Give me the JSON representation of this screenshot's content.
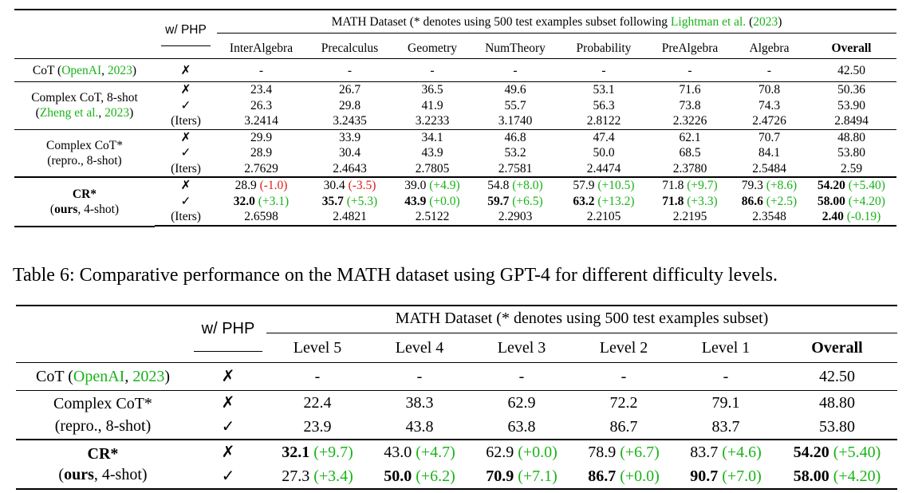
{
  "table1": {
    "php_header": "w/ PHP",
    "group_header_prefix": "MATH Dataset (* denotes using 500 test examples subset following ",
    "group_header_cite_author": "Lightman et al.",
    "group_header_cite_year": "2023",
    "columns": [
      "InterAlgebra",
      "Precalculus",
      "Geometry",
      "NumTheory",
      "Probability",
      "PreAlgebra",
      "Algebra",
      "Overall"
    ],
    "cot": {
      "label_prefix": "CoT (",
      "label_author": "OpenAI",
      "label_year": "2023",
      "php": "✗",
      "values": [
        "-",
        "-",
        "-",
        "-",
        "-",
        "-",
        "-",
        "42.50"
      ]
    },
    "complex_cot": {
      "label_line1": "Complex CoT, 8-shot",
      "label_author": "Zheng et al.",
      "label_year": "2023",
      "php": [
        "✗",
        "✓",
        "(Iters)"
      ],
      "rows": [
        [
          "23.4",
          "26.7",
          "36.5",
          "49.6",
          "53.1",
          "71.6",
          "70.8",
          "50.36"
        ],
        [
          "26.3",
          "29.8",
          "41.9",
          "55.7",
          "56.3",
          "73.8",
          "74.3",
          "53.90"
        ],
        [
          "3.2414",
          "3.2435",
          "3.2233",
          "3.1740",
          "2.8122",
          "2.3226",
          "2.4726",
          "2.8494"
        ]
      ]
    },
    "complex_cot_repro": {
      "label_line1": "Complex CoT*",
      "label_line2": "(repro., 8-shot)",
      "php": [
        "✗",
        "✓",
        "(Iters)"
      ],
      "rows": [
        [
          "29.9",
          "33.9",
          "34.1",
          "46.8",
          "47.4",
          "62.1",
          "70.7",
          "48.80"
        ],
        [
          "28.9",
          "30.4",
          "43.9",
          "53.2",
          "50.0",
          "68.5",
          "84.1",
          "53.80"
        ],
        [
          "2.7629",
          "2.4643",
          "2.7805",
          "2.7581",
          "2.4474",
          "2.3780",
          "2.5484",
          "2.59"
        ]
      ]
    },
    "cr": {
      "label_line1": "CR*",
      "label_line2_bold": "ours",
      "label_line2_rest": ", 4-shot)",
      "php": [
        "✗",
        "✓",
        "(Iters)"
      ],
      "row1": [
        {
          "v": "28.9",
          "d": "(-1.0)",
          "c": "r",
          "bold": false
        },
        {
          "v": "30.4",
          "d": "(-3.5)",
          "c": "r",
          "bold": false
        },
        {
          "v": "39.0",
          "d": "(+4.9)",
          "c": "g",
          "bold": false
        },
        {
          "v": "54.8",
          "d": "(+8.0)",
          "c": "g",
          "bold": false
        },
        {
          "v": "57.9",
          "d": "(+10.5)",
          "c": "g",
          "bold": false
        },
        {
          "v": "71.8",
          "d": "(+9.7)",
          "c": "g",
          "bold": false
        },
        {
          "v": "79.3",
          "d": "(+8.6)",
          "c": "g",
          "bold": false
        },
        {
          "v": "54.20",
          "d": "(+5.40)",
          "c": "g",
          "bold": true
        }
      ],
      "row2": [
        {
          "v": "32.0",
          "d": "(+3.1)",
          "c": "g",
          "bold": true
        },
        {
          "v": "35.7",
          "d": "(+5.3)",
          "c": "g",
          "bold": true
        },
        {
          "v": "43.9",
          "d": "(+0.0)",
          "c": "g",
          "bold": true
        },
        {
          "v": "59.7",
          "d": "(+6.5)",
          "c": "g",
          "bold": true
        },
        {
          "v": "63.2",
          "d": "(+13.2)",
          "c": "g",
          "bold": true
        },
        {
          "v": "71.8",
          "d": "(+3.3)",
          "c": "g",
          "bold": true
        },
        {
          "v": "86.6",
          "d": "(+2.5)",
          "c": "g",
          "bold": true
        },
        {
          "v": "58.00",
          "d": "(+4.20)",
          "c": "g",
          "bold": true
        }
      ],
      "row3": [
        {
          "v": "2.6598",
          "d": "",
          "c": "",
          "bold": false
        },
        {
          "v": "2.4821",
          "d": "",
          "c": "",
          "bold": false
        },
        {
          "v": "2.5122",
          "d": "",
          "c": "",
          "bold": false
        },
        {
          "v": "2.2903",
          "d": "",
          "c": "",
          "bold": false
        },
        {
          "v": "2.2105",
          "d": "",
          "c": "",
          "bold": false
        },
        {
          "v": "2.2195",
          "d": "",
          "c": "",
          "bold": false
        },
        {
          "v": "2.3548",
          "d": "",
          "c": "",
          "bold": false
        },
        {
          "v": "2.40",
          "d": "(-0.19)",
          "c": "g",
          "bold": true
        }
      ]
    }
  },
  "caption": "Table 6: Comparative performance on the MATH dataset using GPT-4 for different difficulty levels.",
  "table2": {
    "php_header": "w/ PHP",
    "group_header": "MATH Dataset (* denotes using 500 test examples subset)",
    "columns": [
      "Level 5",
      "Level 4",
      "Level 3",
      "Level 2",
      "Level 1",
      "Overall"
    ],
    "cot": {
      "label_prefix": "CoT (",
      "label_author": "OpenAI",
      "label_year": "2023",
      "php": "✗",
      "values": [
        "-",
        "-",
        "-",
        "-",
        "-",
        "42.50"
      ]
    },
    "complex_cot_repro": {
      "label_line1": "Complex CoT*",
      "label_line2": "(repro., 8-shot)",
      "php": [
        "✗",
        "✓"
      ],
      "rows": [
        [
          "22.4",
          "38.3",
          "62.9",
          "72.2",
          "79.1",
          "48.80"
        ],
        [
          "23.9",
          "43.8",
          "63.8",
          "86.7",
          "83.7",
          "53.80"
        ]
      ]
    },
    "cr": {
      "label_line1": "CR*",
      "label_line2_bold": "ours",
      "label_line2_rest": ", 4-shot)",
      "php": [
        "✗",
        "✓"
      ],
      "row1": [
        {
          "v": "32.1",
          "d": "(+9.7)",
          "c": "g",
          "bold": true
        },
        {
          "v": "43.0",
          "d": "(+4.7)",
          "c": "g",
          "bold": false
        },
        {
          "v": "62.9",
          "d": "(+0.0)",
          "c": "g",
          "bold": false
        },
        {
          "v": "78.9",
          "d": "(+6.7)",
          "c": "g",
          "bold": false
        },
        {
          "v": "83.7",
          "d": "(+4.6)",
          "c": "g",
          "bold": false
        },
        {
          "v": "54.20",
          "d": "(+5.40)",
          "c": "g",
          "bold": true
        }
      ],
      "row2": [
        {
          "v": "27.3",
          "d": "(+3.4)",
          "c": "g",
          "bold": false
        },
        {
          "v": "50.0",
          "d": "(+6.2)",
          "c": "g",
          "bold": true
        },
        {
          "v": "70.9",
          "d": "(+7.1)",
          "c": "g",
          "bold": true
        },
        {
          "v": "86.7",
          "d": "(+0.0)",
          "c": "g",
          "bold": true
        },
        {
          "v": "90.7",
          "d": "(+7.0)",
          "c": "g",
          "bold": true
        },
        {
          "v": "58.00",
          "d": "(+4.20)",
          "c": "g",
          "bold": true
        }
      ]
    }
  },
  "colors": {
    "positive": "#19b319",
    "negative": "#e01b1b"
  }
}
